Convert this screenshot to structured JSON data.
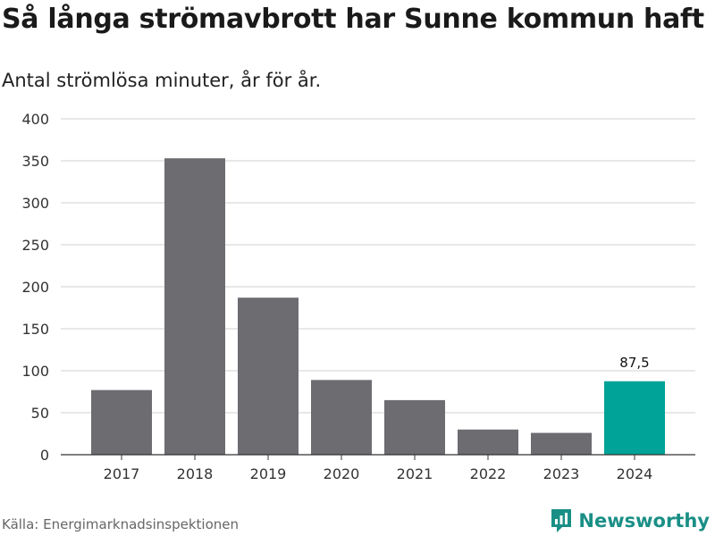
{
  "header": {
    "title": "Så långa strömavbrott har Sunne kommun haft",
    "subtitle": "Antal strömlösa minuter, år för år."
  },
  "footer": {
    "source": "Källa: Energimarknadsinspektionen",
    "brand": "Newsworthy",
    "brand_icon": "newsworthy-logo-icon"
  },
  "colors": {
    "bar": "#6d6c71",
    "highlight": "#00a398",
    "grid": "#d9d9d9",
    "axis": "#333333",
    "brand": "#1a8f86"
  },
  "chart_data": {
    "type": "bar",
    "categories": [
      "2017",
      "2018",
      "2019",
      "2020",
      "2021",
      "2022",
      "2023",
      "2024"
    ],
    "values": [
      77,
      353,
      187,
      89,
      65,
      30,
      26,
      87.5
    ],
    "highlight_index": 7,
    "data_labels": [
      {
        "index": 7,
        "text": "87,5"
      }
    ],
    "ylim": [
      0,
      400
    ],
    "yticks": [
      0,
      50,
      100,
      150,
      200,
      250,
      300,
      350,
      400
    ],
    "xlabel": "",
    "ylabel": "",
    "grid": true,
    "legend": "none"
  }
}
